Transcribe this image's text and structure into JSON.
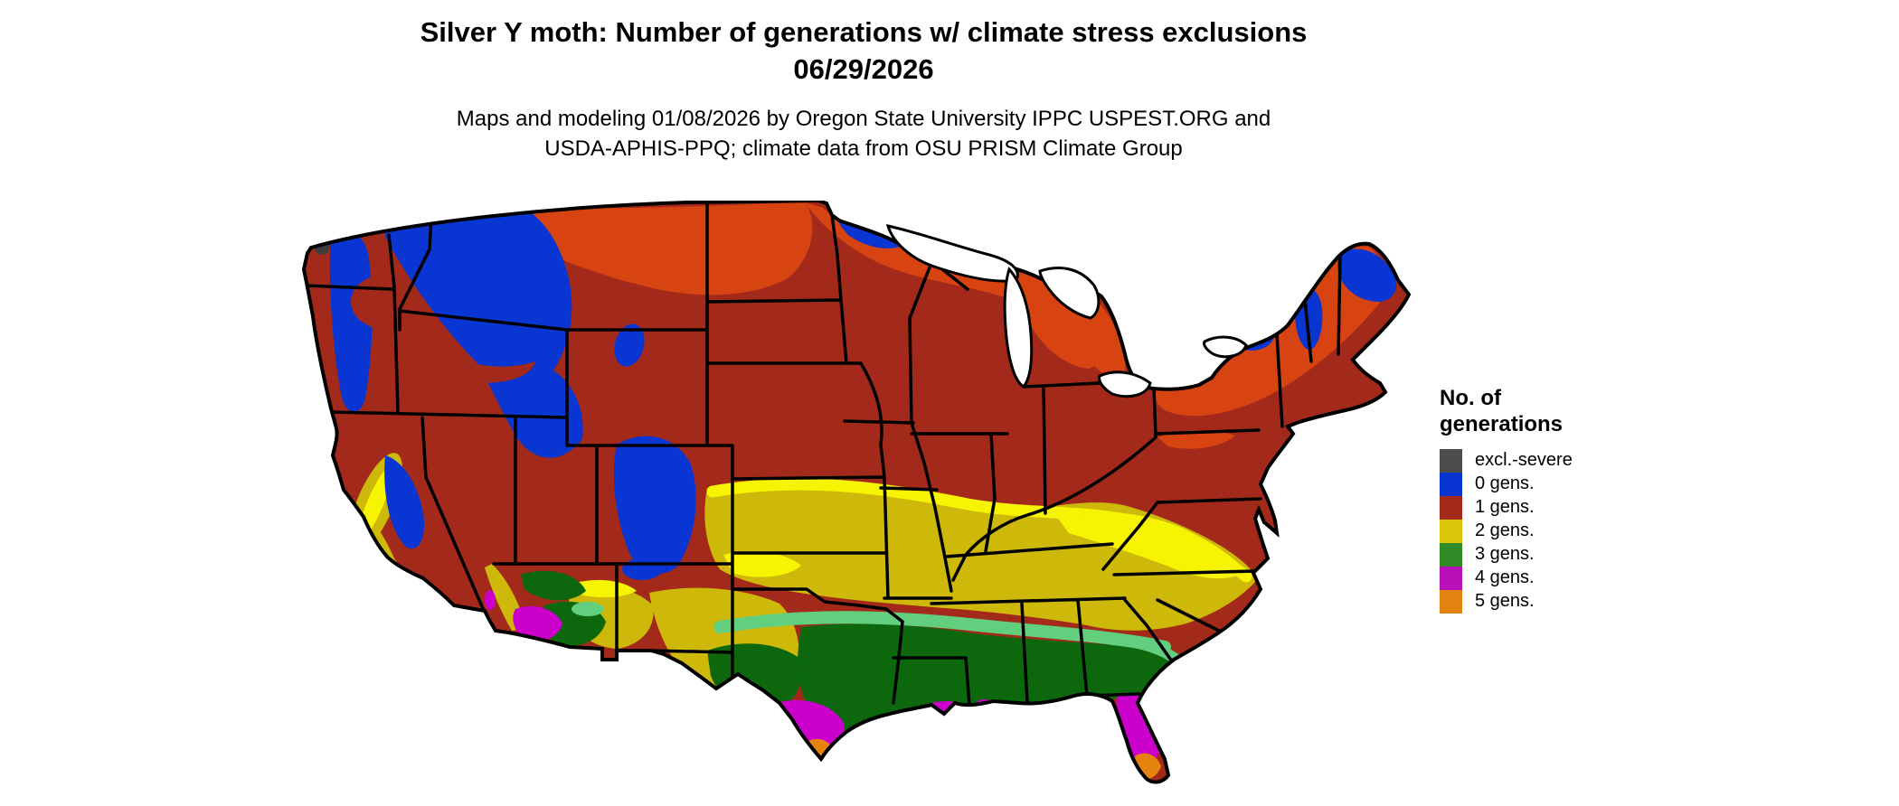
{
  "header": {
    "title_line1": "Silver Y moth: Number of generations w/ climate stress exclusions",
    "title_line2": "06/29/2026",
    "subtitle_line1": "Maps and modeling 01/08/2026 by Oregon State University IPPC USPEST.ORG and",
    "subtitle_line2": "USDA-APHIS-PPQ; climate data from OSU PRISM Climate Group"
  },
  "legend": {
    "title": "No. of\ngenerations",
    "items": [
      {
        "label": "excl.-severe",
        "color": "#4D4D4D"
      },
      {
        "label": "0 gens.",
        "color": "#0936D3"
      },
      {
        "label": "1 gens.",
        "color": "#A32A1A"
      },
      {
        "label": "2 gens.",
        "color": "#DCC409"
      },
      {
        "label": "3 gens.",
        "color": "#2E8B26"
      },
      {
        "label": "4 gens.",
        "color": "#B911B9"
      },
      {
        "label": "5 gens.",
        "color": "#E2820F"
      }
    ]
  },
  "colors": {
    "background": "#FFFFFF",
    "border": "#000000",
    "water": "#FFFFFF",
    "base_1gen": "#A32A1A",
    "orange_red_north": "#D84312",
    "blue_0gen": "#0936D3",
    "gray_excl": "#3D3D3D",
    "gold_2gen": "#CEB90A",
    "bright_yellow_edge": "#F6F303",
    "mint_edge": "#62CF7E",
    "green_3gen": "#0D680D",
    "magenta_4gen": "#CC00CC",
    "orange_5gen": "#E5830C"
  }
}
